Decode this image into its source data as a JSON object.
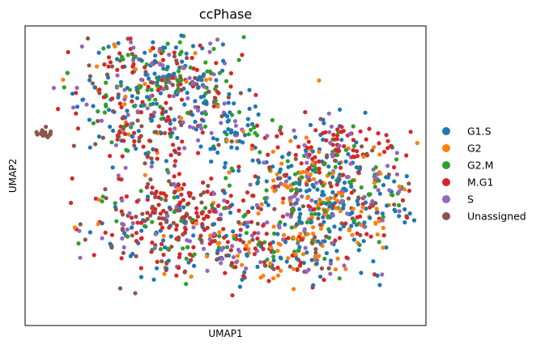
{
  "chart_data": {
    "type": "scatter",
    "title": "ccPhase",
    "xlabel": "UMAP1",
    "ylabel": "UMAP2",
    "xlim": [
      -6,
      14
    ],
    "ylim": [
      -3,
      11
    ],
    "x_ticks_shown": false,
    "y_ticks_shown": false,
    "grid": false,
    "legend_placement": "right",
    "series": [
      {
        "name": "G1.S",
        "color": "#1f77b4"
      },
      {
        "name": "G2",
        "color": "#ff7f0e"
      },
      {
        "name": "G2.M",
        "color": "#2ca02c"
      },
      {
        "name": "M.G1",
        "color": "#d62728"
      },
      {
        "name": "S",
        "color": "#9467bd"
      },
      {
        "name": "Unassigned",
        "color": "#8c564b"
      }
    ],
    "clusters": [
      {
        "cx": -5.0,
        "cy": 6.0,
        "sx": 0.22,
        "sy": 0.12,
        "n": 18,
        "weights": [
          0,
          0,
          0,
          0,
          0,
          1
        ]
      },
      {
        "cx": 0.8,
        "cy": 8.3,
        "sx": 2.0,
        "sy": 1.4,
        "n": 420,
        "weights": [
          0.24,
          0.06,
          0.16,
          0.22,
          0.18,
          0.14
        ]
      },
      {
        "cx": 4.2,
        "cy": 6.3,
        "sx": 0.9,
        "sy": 0.8,
        "n": 70,
        "weights": [
          0.52,
          0.06,
          0.12,
          0.08,
          0.12,
          0.1
        ]
      },
      {
        "cx": 9.2,
        "cy": 3.0,
        "sx": 2.2,
        "sy": 1.4,
        "n": 500,
        "weights": [
          0.3,
          0.18,
          0.16,
          0.14,
          0.14,
          0.08
        ]
      },
      {
        "cx": 9.5,
        "cy": 5.4,
        "sx": 1.6,
        "sy": 0.6,
        "n": 90,
        "weights": [
          0.14,
          0.04,
          0.1,
          0.56,
          0.1,
          0.06
        ]
      },
      {
        "cx": 1.2,
        "cy": 2.0,
        "sx": 2.3,
        "sy": 1.3,
        "n": 360,
        "weights": [
          0.14,
          0.04,
          0.1,
          0.42,
          0.1,
          0.2
        ]
      },
      {
        "cx": 6.5,
        "cy": 0.2,
        "sx": 2.0,
        "sy": 0.7,
        "n": 160,
        "weights": [
          0.22,
          0.26,
          0.1,
          0.16,
          0.16,
          0.1
        ]
      },
      {
        "cx": 0.0,
        "cy": 5.6,
        "sx": 1.6,
        "sy": 0.7,
        "n": 60,
        "weights": [
          0.18,
          0.1,
          0.18,
          0.2,
          0.1,
          0.24
        ]
      }
    ]
  }
}
